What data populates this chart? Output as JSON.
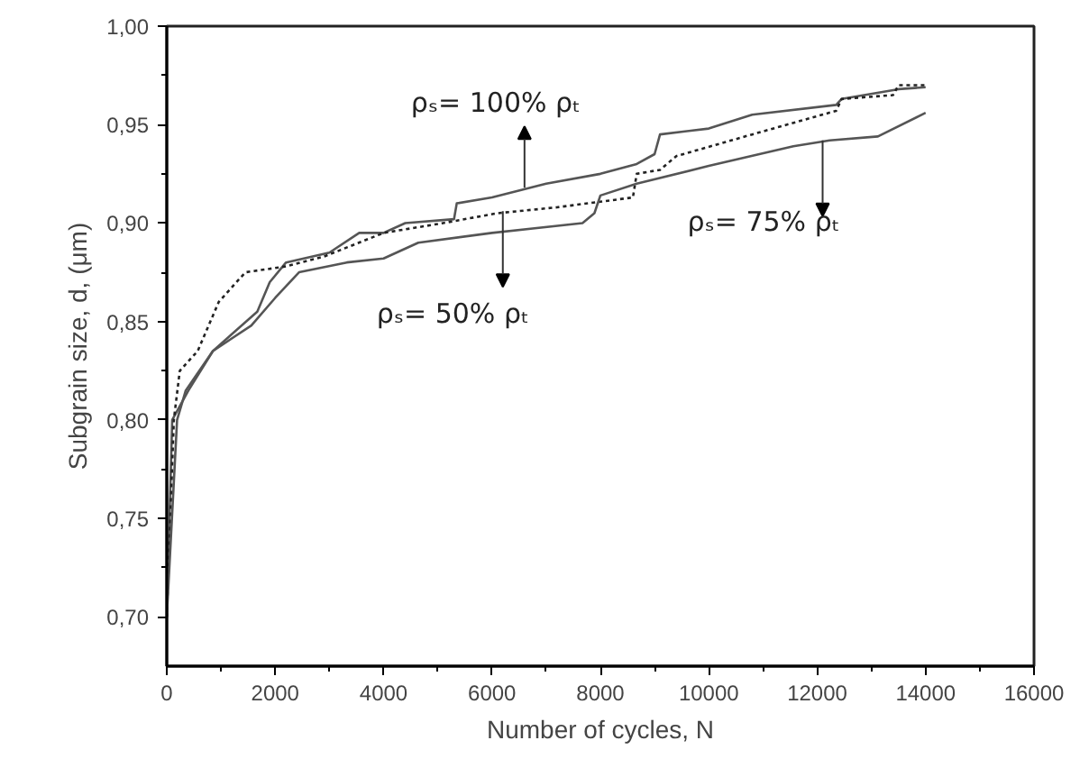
{
  "chart_data": {
    "type": "line",
    "xlabel": "Number of cycles, N",
    "ylabel": "Subgrain size, d, (μm)",
    "xlim": [
      0,
      16000
    ],
    "xticks": [
      0,
      2000,
      4000,
      6000,
      8000,
      10000,
      12000,
      14000,
      16000
    ],
    "ylim": [
      0.675,
      1.0
    ],
    "yticks": [
      {
        "value": 0.7,
        "label": "0,70"
      },
      {
        "value": 0.75,
        "label": "0,75"
      },
      {
        "value": 0.8,
        "label": "0,80"
      },
      {
        "value": 0.85,
        "label": "0,85"
      },
      {
        "value": 0.9,
        "label": "0,90"
      },
      {
        "value": 0.95,
        "label": "0,95"
      },
      {
        "value": 1.0,
        "label": "1,00"
      }
    ],
    "grid": false,
    "marker": "none",
    "series": [
      {
        "color": "#555555",
        "line_style": "solid",
        "x": [
          0,
          100,
          400,
          850,
          1670,
          1900,
          2200,
          3000,
          3550,
          4000,
          4400,
          5300,
          5350,
          6000,
          7000,
          8000,
          8670,
          9000,
          9100,
          10000,
          10800,
          12350,
          12450,
          13500,
          14000
        ],
        "values": [
          0.7,
          0.8,
          0.815,
          0.835,
          0.855,
          0.87,
          0.88,
          0.885,
          0.895,
          0.895,
          0.9,
          0.902,
          0.91,
          0.913,
          0.92,
          0.925,
          0.93,
          0.935,
          0.945,
          0.948,
          0.955,
          0.96,
          0.963,
          0.968,
          0.969
        ]
      },
      {
        "color": "#222222",
        "line_style": "dotted",
        "x": [
          0,
          130,
          240,
          570,
          960,
          1450,
          2200,
          2900,
          4000,
          5100,
          6100,
          7200,
          8600,
          8670,
          9100,
          9400,
          10800,
          12350,
          12450,
          13400,
          13500,
          14000
        ],
        "values": [
          0.7,
          0.8,
          0.825,
          0.835,
          0.86,
          0.875,
          0.878,
          0.883,
          0.895,
          0.9,
          0.905,
          0.908,
          0.913,
          0.925,
          0.927,
          0.934,
          0.945,
          0.957,
          0.963,
          0.965,
          0.97,
          0.97
        ]
      },
      {
        "color": "#555555",
        "line_style": "solid",
        "x": [
          0,
          190,
          350,
          850,
          1560,
          2000,
          2440,
          3320,
          4000,
          4640,
          6000,
          7670,
          7890,
          8000,
          8670,
          10000,
          11560,
          12230,
          13120,
          14000
        ],
        "values": [
          0.7,
          0.8,
          0.815,
          0.835,
          0.848,
          0.862,
          0.875,
          0.88,
          0.882,
          0.89,
          0.895,
          0.9,
          0.905,
          0.914,
          0.92,
          0.929,
          0.939,
          0.942,
          0.944,
          0.956
        ]
      }
    ],
    "annotations": [
      {
        "text": "ρₛ= 100% ρₜ",
        "x": 6600,
        "y": 0.918
      },
      {
        "text": "ρₛ= 50% ρₜ",
        "x": 6200,
        "y": 0.906
      },
      {
        "text": "ρₛ= 75% ρₜ",
        "x": 12100,
        "y": 0.942
      }
    ]
  }
}
